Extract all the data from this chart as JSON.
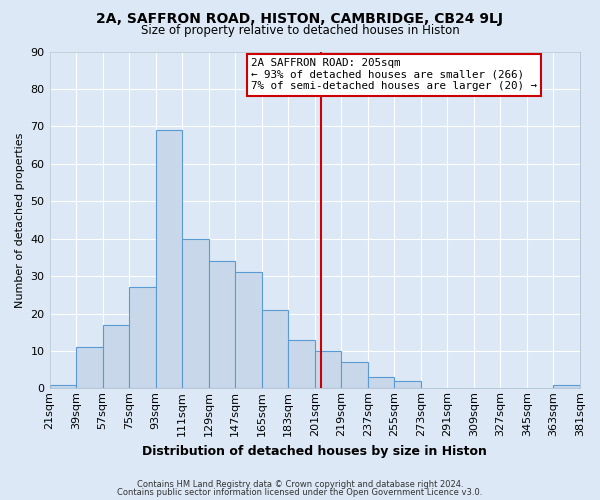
{
  "title": "2A, SAFFRON ROAD, HISTON, CAMBRIDGE, CB24 9LJ",
  "subtitle": "Size of property relative to detached houses in Histon",
  "xlabel": "Distribution of detached houses by size in Histon",
  "ylabel": "Number of detached properties",
  "bin_starts": [
    21,
    39,
    57,
    75,
    93,
    111,
    129,
    147,
    165,
    183,
    201,
    219,
    237,
    255,
    273,
    291,
    309,
    327,
    345,
    363
  ],
  "bin_width": 18,
  "counts": [
    1,
    11,
    17,
    27,
    69,
    40,
    34,
    31,
    21,
    13,
    10,
    7,
    3,
    2,
    0,
    0,
    0,
    0,
    0,
    1
  ],
  "tick_labels": [
    "21sqm",
    "39sqm",
    "57sqm",
    "75sqm",
    "93sqm",
    "111sqm",
    "129sqm",
    "147sqm",
    "165sqm",
    "183sqm",
    "201sqm",
    "219sqm",
    "237sqm",
    "255sqm",
    "273sqm",
    "291sqm",
    "309sqm",
    "327sqm",
    "345sqm",
    "363sqm",
    "381sqm"
  ],
  "bar_facecolor": "#c8d8ea",
  "bar_edgecolor": "#5b9bd5",
  "vline_x": 205,
  "vline_color": "#cc0000",
  "annotation_title": "2A SAFFRON ROAD: 205sqm",
  "annotation_line1": "← 93% of detached houses are smaller (266)",
  "annotation_line2": "7% of semi-detached houses are larger (20) →",
  "annotation_box_edgecolor": "#cc0000",
  "ylim": [
    0,
    90
  ],
  "yticks": [
    0,
    10,
    20,
    30,
    40,
    50,
    60,
    70,
    80,
    90
  ],
  "footer1": "Contains HM Land Registry data © Crown copyright and database right 2024.",
  "footer2": "Contains public sector information licensed under the Open Government Licence v3.0.",
  "fig_background_color": "#dce8f5",
  "plot_background_color": "#dce8f5",
  "grid_color": "#ffffff"
}
